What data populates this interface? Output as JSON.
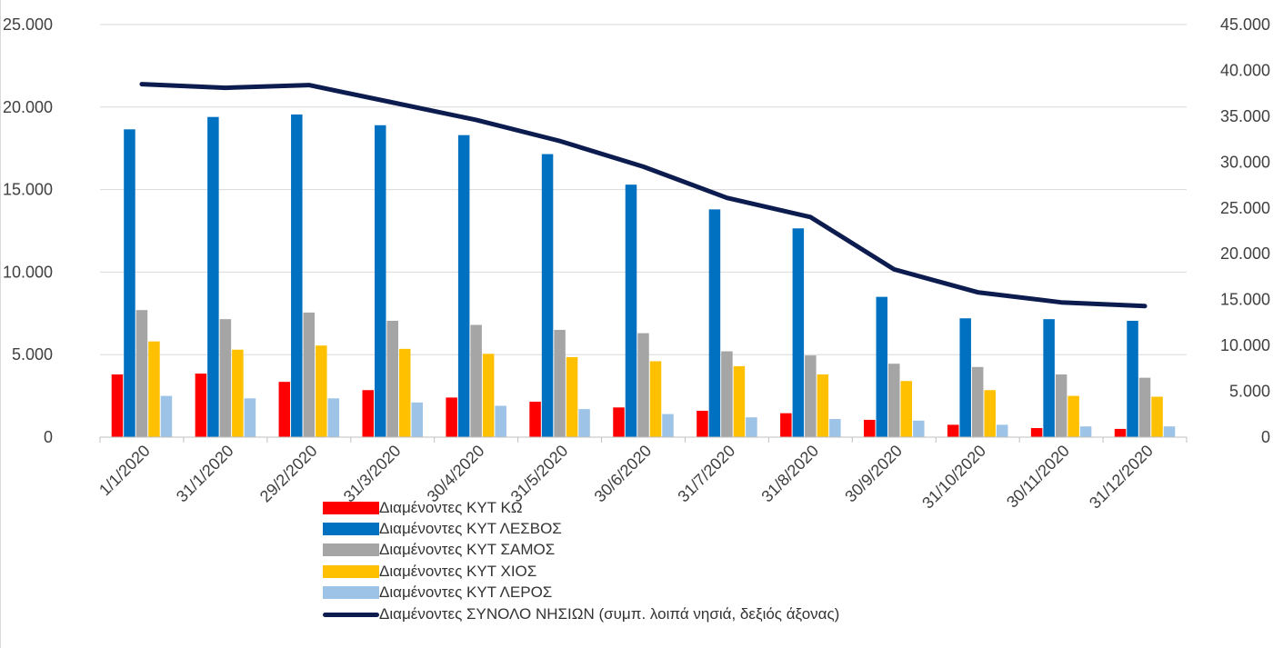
{
  "chart_data": {
    "type": "bar",
    "categories": [
      "1/1/2020",
      "31/1/2020",
      "29/2/2020",
      "31/3/2020",
      "30/4/2020",
      "31/5/2020",
      "30/6/2020",
      "31/7/2020",
      "31/8/2020",
      "30/9/2020",
      "31/10/2020",
      "30/11/2020",
      "31/12/2020"
    ],
    "series": [
      {
        "name": "Διαμένοντες ΚΥΤ ΚΩ",
        "type": "bar",
        "axis": "left",
        "color": "#ff0000",
        "values": [
          3800,
          3850,
          3350,
          2850,
          2400,
          2150,
          1800,
          1600,
          1450,
          1050,
          750,
          550,
          500
        ]
      },
      {
        "name": "Διαμένοντες ΚΥΤ ΛΕΣΒΟΣ",
        "type": "bar",
        "axis": "left",
        "color": "#0070c0",
        "values": [
          18650,
          19400,
          19550,
          18900,
          18300,
          17150,
          15300,
          13800,
          12650,
          8500,
          7200,
          7150,
          7050
        ]
      },
      {
        "name": "Διαμένοντες ΚΥΤ ΣΑΜΟΣ",
        "type": "bar",
        "axis": "left",
        "color": "#a5a5a5",
        "values": [
          7700,
          7150,
          7550,
          7050,
          6800,
          6500,
          6300,
          5200,
          4950,
          4450,
          4250,
          3800,
          3600
        ]
      },
      {
        "name": "Διαμένοντες ΚΥΤ ΧΙΟΣ",
        "type": "bar",
        "axis": "left",
        "color": "#ffc000",
        "values": [
          5800,
          5300,
          5550,
          5350,
          5050,
          4850,
          4600,
          4300,
          3800,
          3400,
          2850,
          2500,
          2450
        ]
      },
      {
        "name": "Διαμένοντες ΚΥΤ ΛΕΡΟΣ",
        "type": "bar",
        "axis": "left",
        "color": "#9dc3e6",
        "values": [
          2500,
          2350,
          2350,
          2100,
          1900,
          1700,
          1400,
          1200,
          1100,
          1000,
          750,
          650,
          650
        ]
      },
      {
        "name": "Διαμένοντες ΣΥΝΟΛΟ ΝΗΣΙΩΝ (συμπ. λοιπά νησιά, δεξιός άξονας)",
        "type": "line",
        "axis": "right",
        "color": "#0d1c4f",
        "values": [
          38500,
          38100,
          38400,
          36500,
          34600,
          32300,
          29500,
          26100,
          24000,
          18300,
          15800,
          14700,
          14300
        ]
      }
    ],
    "y_left": {
      "ylim": [
        0,
        25000
      ],
      "ticks": [
        0,
        5000,
        10000,
        15000,
        20000,
        25000
      ],
      "tick_labels": [
        "0",
        "5.000",
        "10.000",
        "15.000",
        "20.000",
        "25.000"
      ]
    },
    "y_right": {
      "ylim": [
        0,
        45000
      ],
      "ticks": [
        0,
        5000,
        10000,
        15000,
        20000,
        25000,
        30000,
        35000,
        40000,
        45000
      ],
      "tick_labels": [
        "0",
        "5.000",
        "10.000",
        "15.000",
        "20.000",
        "25.000",
        "30.000",
        "35.000",
        "40.000",
        "45.000"
      ]
    },
    "grid": true,
    "legend_position": "bottom"
  }
}
